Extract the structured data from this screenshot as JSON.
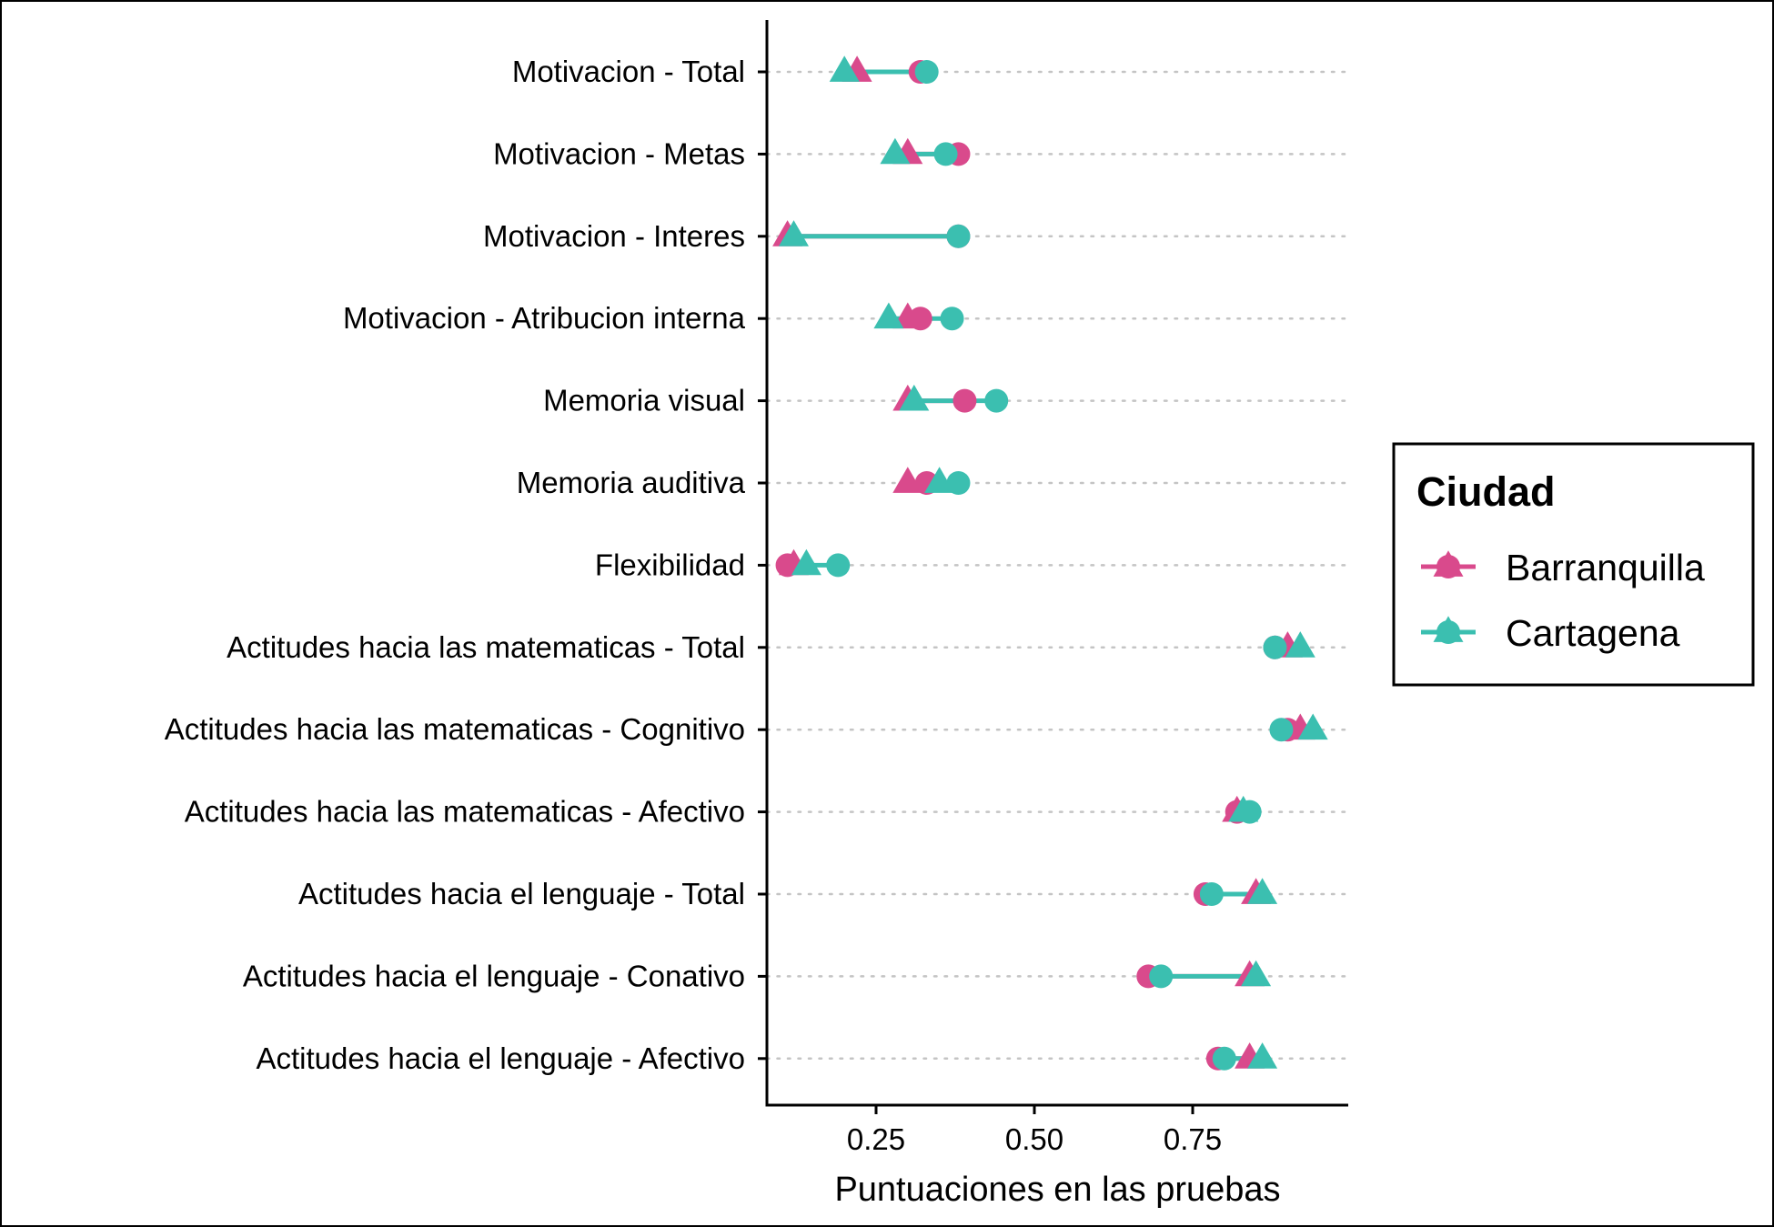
{
  "chart_data": {
    "type": "dumbbell",
    "xlabel": "Puntuaciones en las pruebas",
    "ylabel": "",
    "xlim": [
      0.08,
      0.97
    ],
    "xticks": [
      0.25,
      0.5,
      0.75
    ],
    "xtick_labels": [
      "0.25",
      "0.50",
      "0.75"
    ],
    "grid": "dotted horizontal",
    "categories": [
      "Motivacion - Total",
      "Motivacion - Metas",
      "Motivacion - Interes",
      "Motivacion - Atribucion interna",
      "Memoria visual",
      "Memoria auditiva",
      "Flexibilidad",
      "Actitudes hacia las matematicas - Total",
      "Actitudes hacia las matematicas - Cognitivo",
      "Actitudes hacia las matematicas - Afectivo",
      "Actitudes hacia el lenguaje - Total",
      "Actitudes hacia el lenguaje - Conativo",
      "Actitudes hacia el lenguaje - Afectivo"
    ],
    "measures": [
      "circle",
      "triangle"
    ],
    "legend": {
      "title": "Ciudad",
      "position": "right"
    },
    "series": [
      {
        "name": "Barranquilla",
        "color": "#D94A8C",
        "circle": [
          0.32,
          0.38,
          0.38,
          0.32,
          0.39,
          0.33,
          0.11,
          0.88,
          0.9,
          0.82,
          0.77,
          0.68,
          0.79
        ],
        "triangle": [
          0.22,
          0.3,
          0.11,
          0.3,
          0.3,
          0.3,
          0.12,
          0.9,
          0.92,
          0.82,
          0.85,
          0.84,
          0.84
        ]
      },
      {
        "name": "Cartagena",
        "color": "#3BBFB0",
        "circle": [
          0.33,
          0.36,
          0.38,
          0.37,
          0.44,
          0.38,
          0.19,
          0.88,
          0.89,
          0.84,
          0.78,
          0.7,
          0.8
        ],
        "triangle": [
          0.2,
          0.28,
          0.12,
          0.27,
          0.31,
          0.35,
          0.14,
          0.92,
          0.94,
          0.83,
          0.86,
          0.85,
          0.86
        ]
      }
    ]
  }
}
